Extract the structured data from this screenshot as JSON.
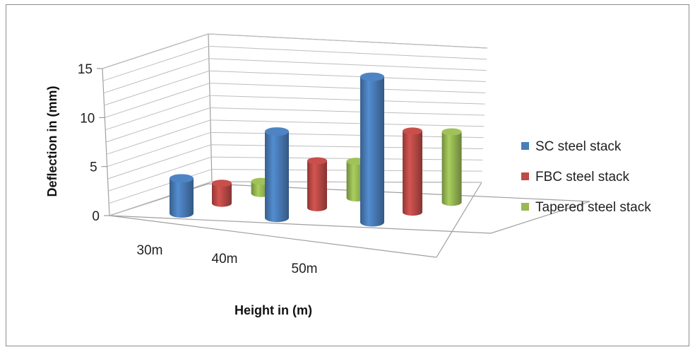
{
  "chart_data": {
    "type": "bar",
    "style": "3d-cylinder",
    "categories": [
      "30m",
      "40m",
      "50m"
    ],
    "series": [
      {
        "name": "SC steel stack",
        "color": "#4a7ebb",
        "values": [
          3.5,
          8.3,
          13.5
        ]
      },
      {
        "name": "FBC steel stack",
        "color": "#be4b48",
        "values": [
          2.0,
          4.5,
          7.5
        ]
      },
      {
        "name": "Tapered steel stack",
        "color": "#98b954",
        "values": [
          1.2,
          3.5,
          6.5
        ]
      }
    ],
    "title": "",
    "xlabel": "Height in (m)",
    "ylabel": "Deflection in (mm)",
    "ylim": [
      0,
      15
    ],
    "yticks": [
      "0",
      "5",
      "10",
      "15"
    ],
    "grid": true,
    "legend_position": "right"
  }
}
